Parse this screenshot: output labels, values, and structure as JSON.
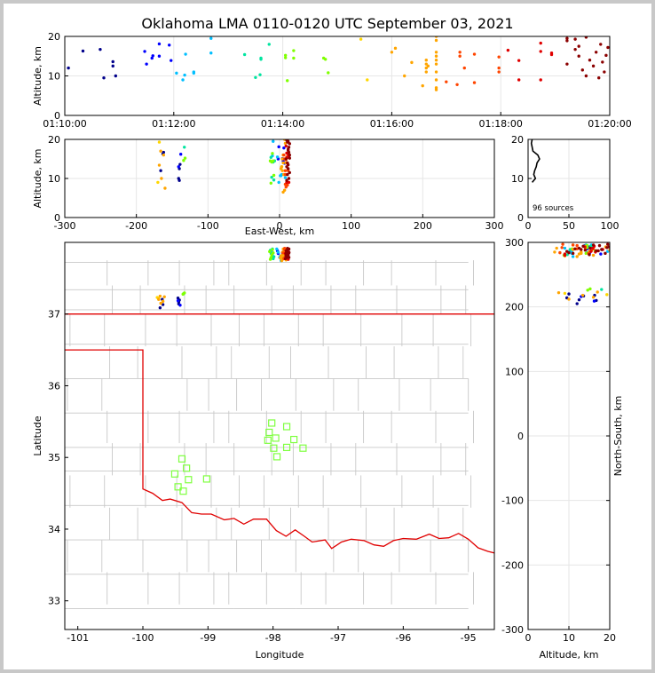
{
  "chart_data": {
    "title": "Oklahoma LMA 0110-0120 UTC September 03, 2021",
    "source_count_label": "96 sources",
    "colors": {
      "state_border": "#e00000",
      "county_lines": "#c8c8c8",
      "station": "#7fff40",
      "grid": "#e6e6e6"
    },
    "time_colors": [
      "#00008b",
      "#0000ff",
      "#00bfff",
      "#00e5a0",
      "#7fff00",
      "#ffd700",
      "#ffa500",
      "#ff4500",
      "#e00000",
      "#8b0000"
    ],
    "panels": [
      {
        "id": "time-altitude",
        "type": "scatter",
        "xlabel": "",
        "ylabel": "Altitude, km",
        "xlim": [
          "01:10:00",
          "01:20:00"
        ],
        "ylim": [
          0,
          20
        ],
        "xticks": [
          "01:10:00",
          "01:12:00",
          "01:14:00",
          "01:16:00",
          "01:18:00",
          "01:20:00"
        ],
        "yticks": [
          0,
          10,
          20
        ]
      },
      {
        "id": "eastwest-altitude",
        "type": "scatter",
        "xlabel": "East-West, km",
        "ylabel": "Altitude, km",
        "xlim": [
          -300,
          300
        ],
        "ylim": [
          0,
          20
        ],
        "xticks": [
          -300,
          -200,
          -100,
          0,
          100,
          200,
          300
        ],
        "yticks": [
          0,
          10,
          20
        ]
      },
      {
        "id": "altitude-histogram",
        "type": "line",
        "xlabel": "",
        "ylabel": "",
        "xlim": [
          0,
          100
        ],
        "ylim": [
          0,
          20
        ],
        "xticks": [
          0,
          50,
          100
        ],
        "yticks": [
          0,
          10,
          20
        ]
      },
      {
        "id": "plan-view",
        "type": "scatter",
        "xlabel": "Longitude",
        "ylabel": "Latitude",
        "xlim": [
          -101.2,
          -94.6
        ],
        "ylim": [
          32.6,
          38.0
        ],
        "xticks": [
          -101,
          -100,
          -99,
          -98,
          -97,
          -96,
          -95
        ],
        "yticks": [
          33,
          34,
          35,
          36,
          37
        ]
      },
      {
        "id": "altitude-northsouth",
        "type": "scatter",
        "xlabel": "Altitude, km",
        "ylabel": "North-South, km",
        "xlim": [
          0,
          20
        ],
        "ylim": [
          -300,
          300
        ],
        "xticks": [
          0,
          10,
          20
        ],
        "yticks": [
          -300,
          -200,
          -100,
          0,
          100,
          200,
          300
        ]
      }
    ],
    "sources": [
      {
        "t": "01:10:04",
        "alt": 12.0,
        "x": -166,
        "y": 205
      },
      {
        "t": "01:10:20",
        "alt": 16.3,
        "x": -163,
        "y": 218
      },
      {
        "t": "01:10:39",
        "alt": 16.7,
        "x": -162,
        "y": 210
      },
      {
        "t": "01:10:43",
        "alt": 9.5,
        "x": -140,
        "y": 214
      },
      {
        "t": "01:10:53",
        "alt": 13.6,
        "x": -139,
        "y": 217
      },
      {
        "t": "01:10:53",
        "alt": 12.5,
        "x": -140,
        "y": 211
      },
      {
        "t": "01:10:56",
        "alt": 10.0,
        "x": -141,
        "y": 220
      },
      {
        "t": "01:11:28",
        "alt": 16.2,
        "x": -138,
        "y": 209
      },
      {
        "t": "01:11:30",
        "alt": 13.0,
        "x": -141,
        "y": 216
      },
      {
        "t": "01:11:36",
        "alt": 14.5,
        "x": 5,
        "y": 290
      },
      {
        "t": "01:11:37",
        "alt": 15.1,
        "x": 4,
        "y": 284
      },
      {
        "t": "01:11:44",
        "alt": 15.0,
        "x": -2,
        "y": 293
      },
      {
        "t": "01:11:44",
        "alt": 18.1,
        "x": -1,
        "y": 289
      },
      {
        "t": "01:11:55",
        "alt": 17.8,
        "x": 6,
        "y": 282
      },
      {
        "t": "01:11:57",
        "alt": 13.9,
        "x": 7,
        "y": 295
      },
      {
        "t": "01:12:03",
        "alt": 10.7,
        "x": 2,
        "y": 285
      },
      {
        "t": "01:12:10",
        "alt": 9.0,
        "x": -1,
        "y": 291
      },
      {
        "t": "01:12:12",
        "alt": 10.2,
        "x": 8,
        "y": 287
      },
      {
        "t": "01:12:13",
        "alt": 15.5,
        "x": -3,
        "y": 296
      },
      {
        "t": "01:12:22",
        "alt": 11.0,
        "x": 3,
        "y": 278
      },
      {
        "t": "01:12:22",
        "alt": 10.7,
        "x": 1,
        "y": 283
      },
      {
        "t": "01:12:41",
        "alt": 15.8,
        "x": -10,
        "y": 292
      },
      {
        "t": "01:12:41",
        "alt": 19.5,
        "x": -9,
        "y": 286
      },
      {
        "t": "01:13:18",
        "alt": 15.4,
        "x": -12,
        "y": 294
      },
      {
        "t": "01:13:30",
        "alt": 9.6,
        "x": -8,
        "y": 281
      },
      {
        "t": "01:13:35",
        "alt": 10.3,
        "x": -11,
        "y": 289
      },
      {
        "t": "01:13:36",
        "alt": 14.2,
        "x": -9,
        "y": 296
      },
      {
        "t": "01:13:36",
        "alt": 14.5,
        "x": -7,
        "y": 284
      },
      {
        "t": "01:13:45",
        "alt": 18.0,
        "x": -133,
        "y": 227
      },
      {
        "t": "01:14:03",
        "alt": 15.2,
        "x": -132,
        "y": 228
      },
      {
        "t": "01:14:03",
        "alt": 14.6,
        "x": -134,
        "y": 226
      },
      {
        "t": "01:14:05",
        "alt": 8.8,
        "x": -12,
        "y": 280
      },
      {
        "t": "01:14:12",
        "alt": 14.5,
        "x": -13,
        "y": 292
      },
      {
        "t": "01:14:12",
        "alt": 16.4,
        "x": -10,
        "y": 287
      },
      {
        "t": "01:14:45",
        "alt": 14.5,
        "x": -9,
        "y": 295
      },
      {
        "t": "01:14:47",
        "alt": 14.2,
        "x": -11,
        "y": 283
      },
      {
        "t": "01:14:50",
        "alt": 10.8,
        "x": -8,
        "y": 290
      },
      {
        "t": "01:15:26",
        "alt": 19.3,
        "x": -168,
        "y": 219
      },
      {
        "t": "01:15:33",
        "alt": 9.0,
        "x": -170,
        "y": 221
      },
      {
        "t": "01:16:00",
        "alt": 16.0,
        "x": -162,
        "y": 215
      },
      {
        "t": "01:16:04",
        "alt": 17.0,
        "x": -166,
        "y": 223
      },
      {
        "t": "01:16:14",
        "alt": 10.0,
        "x": -165,
        "y": 212
      },
      {
        "t": "01:16:22",
        "alt": 13.4,
        "x": -168,
        "y": 218
      },
      {
        "t": "01:16:34",
        "alt": 7.5,
        "x": -160,
        "y": 222
      },
      {
        "t": "01:16:38",
        "alt": 14.0,
        "x": 5,
        "y": 291
      },
      {
        "t": "01:16:38",
        "alt": 13.0,
        "x": 3,
        "y": 285
      },
      {
        "t": "01:16:38",
        "alt": 12.0,
        "x": 4,
        "y": 278
      },
      {
        "t": "01:16:38",
        "alt": 11.0,
        "x": 6,
        "y": 296
      },
      {
        "t": "01:16:40",
        "alt": 12.5,
        "x": 2,
        "y": 282
      },
      {
        "t": "01:16:49",
        "alt": 20.0,
        "x": 7,
        "y": 288
      },
      {
        "t": "01:16:49",
        "alt": 19.0,
        "x": 8,
        "y": 293
      },
      {
        "t": "01:16:49",
        "alt": 16.0,
        "x": 5,
        "y": 280
      },
      {
        "t": "01:16:49",
        "alt": 15.0,
        "x": 4,
        "y": 286
      },
      {
        "t": "01:16:49",
        "alt": 14.0,
        "x": 9,
        "y": 294
      },
      {
        "t": "01:16:49",
        "alt": 13.0,
        "x": 3,
        "y": 283
      },
      {
        "t": "01:16:49",
        "alt": 11.0,
        "x": 6,
        "y": 289
      },
      {
        "t": "01:16:49",
        "alt": 9.0,
        "x": 10,
        "y": 279
      },
      {
        "t": "01:16:49",
        "alt": 7.0,
        "x": 7,
        "y": 291
      },
      {
        "t": "01:16:49",
        "alt": 6.5,
        "x": 5,
        "y": 285
      },
      {
        "t": "01:17:00",
        "alt": 8.5,
        "x": 8,
        "y": 297
      },
      {
        "t": "01:17:12",
        "alt": 7.8,
        "x": 9,
        "y": 284
      },
      {
        "t": "01:17:15",
        "alt": 16.0,
        "x": 6,
        "y": 290
      },
      {
        "t": "01:17:15",
        "alt": 15.0,
        "x": 7,
        "y": 281
      },
      {
        "t": "01:17:20",
        "alt": 12.0,
        "x": 8,
        "y": 295
      },
      {
        "t": "01:17:31",
        "alt": 15.5,
        "x": 10,
        "y": 287
      },
      {
        "t": "01:17:31",
        "alt": 8.3,
        "x": 11,
        "y": 292
      },
      {
        "t": "01:17:58",
        "alt": 14.8,
        "x": 9,
        "y": 283
      },
      {
        "t": "01:17:58",
        "alt": 12.0,
        "x": 12,
        "y": 290
      },
      {
        "t": "01:17:58",
        "alt": 11.0,
        "x": 8,
        "y": 296
      },
      {
        "t": "01:18:08",
        "alt": 16.5,
        "x": 10,
        "y": 285
      },
      {
        "t": "01:18:20",
        "alt": 13.9,
        "x": 11,
        "y": 293
      },
      {
        "t": "01:18:20",
        "alt": 9.0,
        "x": 13,
        "y": 280
      },
      {
        "t": "01:18:44",
        "alt": 18.3,
        "x": 9,
        "y": 289
      },
      {
        "t": "01:18:44",
        "alt": 16.2,
        "x": 12,
        "y": 294
      },
      {
        "t": "01:18:44",
        "alt": 9.0,
        "x": 10,
        "y": 282
      },
      {
        "t": "01:18:56",
        "alt": 15.8,
        "x": 13,
        "y": 291
      },
      {
        "t": "01:18:56",
        "alt": 15.4,
        "x": 11,
        "y": 286
      },
      {
        "t": "01:19:13",
        "alt": 19.5,
        "x": 12,
        "y": 297
      },
      {
        "t": "01:19:13",
        "alt": 18.9,
        "x": 14,
        "y": 283
      },
      {
        "t": "01:19:13",
        "alt": 13.0,
        "x": 10,
        "y": 289
      },
      {
        "t": "01:19:22",
        "alt": 19.3,
        "x": 11,
        "y": 292
      },
      {
        "t": "01:19:22",
        "alt": 16.7,
        "x": 13,
        "y": 287
      },
      {
        "t": "01:19:26",
        "alt": 17.5,
        "x": 12,
        "y": 295
      },
      {
        "t": "01:19:26",
        "alt": 15.0,
        "x": 9,
        "y": 281
      },
      {
        "t": "01:19:30",
        "alt": 11.5,
        "x": 14,
        "y": 290
      },
      {
        "t": "01:19:34",
        "alt": 19.8,
        "x": 10,
        "y": 293
      },
      {
        "t": "01:19:34",
        "alt": 10.0,
        "x": 13,
        "y": 284
      },
      {
        "t": "01:19:38",
        "alt": 14.0,
        "x": 11,
        "y": 288
      },
      {
        "t": "01:19:42",
        "alt": 12.5,
        "x": 12,
        "y": 291
      },
      {
        "t": "01:19:45",
        "alt": 16.0,
        "x": 14,
        "y": 296
      },
      {
        "t": "01:19:48",
        "alt": 9.5,
        "x": 10,
        "y": 286
      },
      {
        "t": "01:19:50",
        "alt": 18.0,
        "x": 13,
        "y": 289
      },
      {
        "t": "01:19:52",
        "alt": 13.5,
        "x": 12,
        "y": 294
      },
      {
        "t": "01:19:54",
        "alt": 11.0,
        "x": 11,
        "y": 283
      },
      {
        "t": "01:19:56",
        "alt": 15.2,
        "x": 14,
        "y": 291
      },
      {
        "t": "01:19:58",
        "alt": 17.2,
        "x": 12,
        "y": 287
      }
    ],
    "altitude_histogram": {
      "altitude_km": [
        9,
        10,
        11,
        12,
        13,
        14,
        15,
        16,
        17,
        18,
        19,
        20
      ],
      "count": [
        5,
        9,
        7,
        8,
        10,
        11,
        14,
        12,
        6,
        5,
        4,
        5
      ]
    },
    "stations": [
      {
        "lon": -98.02,
        "lat": 35.48
      },
      {
        "lon": -97.79,
        "lat": 35.43
      },
      {
        "lon": -98.06,
        "lat": 35.35
      },
      {
        "lon": -97.96,
        "lat": 35.27
      },
      {
        "lon": -98.08,
        "lat": 35.24
      },
      {
        "lon": -97.68,
        "lat": 35.25
      },
      {
        "lon": -97.79,
        "lat": 35.14
      },
      {
        "lon": -97.99,
        "lat": 35.13
      },
      {
        "lon": -97.54,
        "lat": 35.13
      },
      {
        "lon": -97.94,
        "lat": 35.01
      },
      {
        "lon": -99.4,
        "lat": 34.98
      },
      {
        "lon": -99.33,
        "lat": 34.85
      },
      {
        "lon": -99.51,
        "lat": 34.77
      },
      {
        "lon": -99.3,
        "lat": 34.69
      },
      {
        "lon": -99.02,
        "lat": 34.7
      },
      {
        "lon": -99.46,
        "lat": 34.59
      },
      {
        "lon": -99.38,
        "lat": 34.53
      }
    ]
  }
}
